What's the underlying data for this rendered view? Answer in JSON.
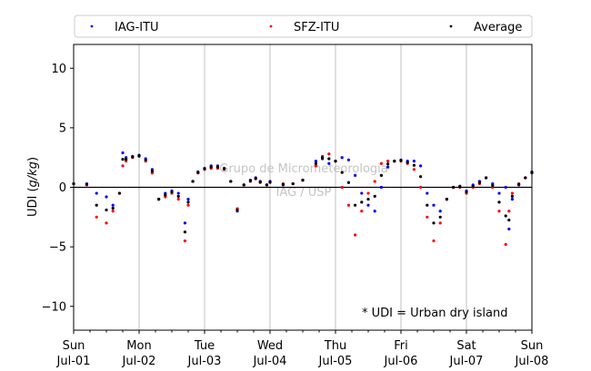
{
  "chart_data": {
    "type": "scatter",
    "ylabel_prefix": "UDI ",
    "ylabel_unit": "g/kg",
    "ylim": [
      -12,
      12
    ],
    "xlim": [
      0,
      7
    ],
    "yticks": [
      10,
      5,
      0,
      -5,
      -10
    ],
    "ytick_labels": [
      "10",
      "5",
      "0",
      "−5",
      "−10"
    ],
    "xticks": [
      {
        "day": "Sun",
        "date": "Jul-01"
      },
      {
        "day": "Mon",
        "date": "Jul-02"
      },
      {
        "day": "Tue",
        "date": "Jul-03"
      },
      {
        "day": "Wed",
        "date": "Jul-04"
      },
      {
        "day": "Thu",
        "date": "Jul-05"
      },
      {
        "day": "Fri",
        "date": "Jul-06"
      },
      {
        "day": "Sat",
        "date": "Jul-07"
      },
      {
        "day": "Sun",
        "date": "Jul-08"
      }
    ],
    "vertical_gridlines": true,
    "zero_line": true,
    "legend_placement": "top, above plot, 3 columns",
    "watermark": [
      "Grupo de Micrometeorologia",
      "IAG / USP"
    ],
    "annotation": "* UDI = Urban dry island",
    "series": [
      {
        "name": "IAG-ITU",
        "color": "#0000ff",
        "x": [
          0.0,
          0.2,
          0.35,
          0.5,
          0.6,
          0.7,
          0.75,
          0.8,
          0.9,
          1.0,
          1.1,
          1.2,
          1.3,
          1.4,
          1.5,
          1.6,
          1.7,
          1.75,
          1.82,
          1.9,
          2.0,
          2.1,
          2.2,
          2.3,
          2.4,
          2.5,
          2.6,
          2.7,
          2.78,
          2.85,
          2.95,
          3.0,
          3.2,
          3.35,
          3.5,
          3.7,
          3.8,
          3.9,
          4.0,
          4.1,
          4.2,
          4.3,
          4.4,
          4.5,
          4.6,
          4.7,
          4.8,
          4.9,
          5.0,
          5.1,
          5.2,
          5.3,
          5.4,
          5.5,
          5.6,
          5.7,
          5.8,
          5.9,
          6.0,
          6.1,
          6.2,
          6.3,
          6.4,
          6.5,
          6.6,
          6.65,
          6.7,
          6.8,
          6.9,
          7.0
        ],
        "y": [
          0.3,
          0.3,
          -0.5,
          -0.8,
          -1.5,
          -0.5,
          2.9,
          2.5,
          2.6,
          2.7,
          2.4,
          1.5,
          -1.0,
          -0.5,
          -0.3,
          -0.5,
          -3.0,
          -1.0,
          0.5,
          1.3,
          1.6,
          1.8,
          1.8,
          1.6,
          0.5,
          -2.0,
          0.2,
          0.6,
          0.8,
          0.5,
          0.2,
          0.5,
          0.2,
          0.3,
          0.6,
          2.2,
          2.4,
          2.0,
          2.2,
          2.5,
          2.3,
          1.0,
          -0.5,
          -1.5,
          -2.0,
          0.0,
          1.7,
          2.2,
          2.3,
          2.2,
          2.2,
          1.8,
          -0.5,
          -1.5,
          -2.0,
          -1.0,
          0.0,
          0.1,
          -0.3,
          0.2,
          0.5,
          0.8,
          0.3,
          -0.5,
          0.0,
          -3.5,
          -1.0,
          0.2,
          0.8,
          1.3
        ]
      },
      {
        "name": "SFZ-ITU",
        "color": "#ff0000",
        "x": [
          0.0,
          0.2,
          0.35,
          0.5,
          0.6,
          0.7,
          0.75,
          0.8,
          0.9,
          1.0,
          1.1,
          1.2,
          1.3,
          1.4,
          1.5,
          1.6,
          1.7,
          1.75,
          1.82,
          1.9,
          2.0,
          2.1,
          2.2,
          2.3,
          2.4,
          2.5,
          2.6,
          2.7,
          2.78,
          2.85,
          2.95,
          3.0,
          3.2,
          3.35,
          3.5,
          3.7,
          3.8,
          3.9,
          4.0,
          4.1,
          4.2,
          4.3,
          4.4,
          4.5,
          4.6,
          4.7,
          4.8,
          4.9,
          5.0,
          5.1,
          5.2,
          5.3,
          5.4,
          5.5,
          5.6,
          5.7,
          5.8,
          5.9,
          6.0,
          6.1,
          6.2,
          6.3,
          6.4,
          6.5,
          6.6,
          6.65,
          6.7,
          6.8,
          6.9,
          7.0
        ],
        "y": [
          0.3,
          0.2,
          -2.5,
          -3.0,
          -2.0,
          -0.5,
          1.8,
          2.2,
          2.5,
          2.6,
          2.2,
          1.2,
          -1.0,
          -0.8,
          -0.5,
          -1.0,
          -4.5,
          -1.5,
          0.5,
          1.2,
          1.5,
          1.6,
          1.6,
          1.5,
          0.5,
          -1.8,
          0.2,
          0.5,
          0.7,
          0.4,
          0.2,
          0.4,
          0.3,
          0.3,
          0.6,
          1.8,
          2.6,
          2.8,
          2.2,
          0.0,
          -1.5,
          -4.0,
          -2.0,
          -0.5,
          0.5,
          2.0,
          2.2,
          2.2,
          2.2,
          2.0,
          1.5,
          0.0,
          -2.5,
          -4.5,
          -3.0,
          -1.0,
          0.0,
          0.0,
          -0.5,
          0.0,
          0.3,
          0.8,
          0.0,
          -2.0,
          -4.8,
          -2.0,
          -0.5,
          0.3,
          0.8,
          1.2
        ]
      },
      {
        "name": "Average",
        "color": "#000000",
        "x": [
          0.0,
          0.2,
          0.35,
          0.5,
          0.6,
          0.7,
          0.75,
          0.8,
          0.9,
          1.0,
          1.1,
          1.2,
          1.3,
          1.4,
          1.5,
          1.6,
          1.7,
          1.75,
          1.82,
          1.9,
          2.0,
          2.1,
          2.2,
          2.3,
          2.4,
          2.5,
          2.6,
          2.7,
          2.78,
          2.85,
          2.95,
          3.0,
          3.2,
          3.35,
          3.5,
          3.7,
          3.8,
          3.9,
          4.0,
          4.1,
          4.2,
          4.3,
          4.4,
          4.5,
          4.6,
          4.7,
          4.8,
          4.9,
          5.0,
          5.1,
          5.2,
          5.3,
          5.4,
          5.5,
          5.6,
          5.7,
          5.8,
          5.9,
          6.0,
          6.1,
          6.2,
          6.3,
          6.4,
          6.5,
          6.6,
          6.65,
          6.7,
          6.8,
          6.9,
          7.0
        ],
        "y": [
          0.3,
          0.25,
          -1.5,
          -1.9,
          -1.75,
          -0.5,
          2.35,
          2.35,
          2.55,
          2.65,
          2.3,
          1.35,
          -1.0,
          -0.65,
          -0.4,
          -0.75,
          -3.75,
          -1.25,
          0.5,
          1.25,
          1.55,
          1.7,
          1.7,
          1.55,
          0.5,
          -1.9,
          0.2,
          0.55,
          0.75,
          0.45,
          0.2,
          0.45,
          0.25,
          0.3,
          0.6,
          2.0,
          2.5,
          2.4,
          2.2,
          1.25,
          0.4,
          -1.5,
          -1.25,
          -1.0,
          -0.75,
          1.0,
          1.95,
          2.2,
          2.25,
          2.1,
          1.85,
          0.9,
          -1.5,
          -3.0,
          -2.5,
          -1.0,
          0.0,
          0.05,
          -0.4,
          0.1,
          0.4,
          0.8,
          0.15,
          -1.25,
          -2.4,
          -2.75,
          -0.75,
          0.25,
          0.8,
          1.25
        ]
      }
    ]
  }
}
